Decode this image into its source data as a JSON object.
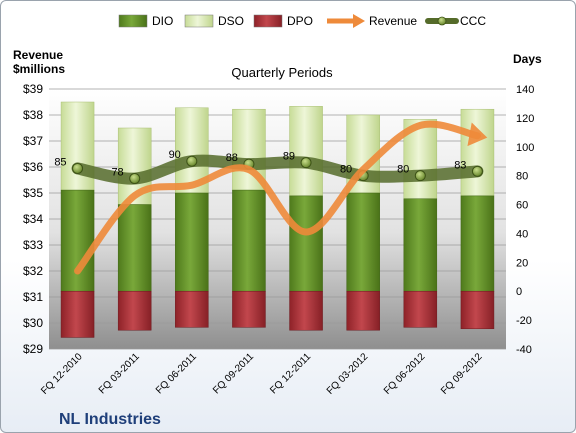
{
  "chart_data": {
    "type": "bar",
    "title": "Quarterly Periods",
    "left_axis_label": [
      "Revenue",
      "$millions"
    ],
    "right_axis_label": "Days",
    "company": "NL Industries",
    "categories": [
      "FQ 12-2010",
      "FQ 03-2011",
      "FQ 06-2011",
      "FQ 09-2011",
      "FQ 12-2011",
      "FQ 03-2012",
      "FQ 06-2012",
      "FQ 09-2012"
    ],
    "left_axis": {
      "min": 29,
      "max": 39,
      "step": 1,
      "ticks": [
        "$29",
        "$30",
        "$31",
        "$32",
        "$33",
        "$34",
        "$35",
        "$36",
        "$37",
        "$38",
        "$39"
      ]
    },
    "right_axis": {
      "min": -40,
      "max": 140,
      "step": 20,
      "ticks": [
        "-40",
        "-20",
        "0",
        "20",
        "40",
        "60",
        "80",
        "100",
        "120",
        "140"
      ]
    },
    "series": [
      {
        "name": "DIO",
        "kind": "bar-stack",
        "axis": "right",
        "color": "#6e9b2e",
        "values": [
          70,
          60,
          68,
          70,
          66,
          68,
          64,
          66
        ]
      },
      {
        "name": "DSO",
        "kind": "bar-stack",
        "axis": "right",
        "color": "#dbe9b6",
        "values": [
          61,
          53,
          59,
          56,
          62,
          54,
          55,
          60
        ]
      },
      {
        "name": "DPO",
        "kind": "bar-below",
        "axis": "right",
        "color": "#b2363c",
        "values": [
          32,
          27,
          25,
          25,
          27,
          27,
          25,
          26
        ]
      },
      {
        "name": "Revenue",
        "kind": "line",
        "axis": "left",
        "color": "#ee8a3a",
        "values": [
          32.0,
          34.9,
          35.3,
          35.9,
          33.5,
          35.9,
          37.6,
          37.2
        ]
      },
      {
        "name": "CCC",
        "kind": "line",
        "axis": "right",
        "color": "#556b2a",
        "values": [
          85,
          78,
          90,
          88,
          89,
          80,
          80,
          83
        ],
        "labels": [
          "85",
          "78",
          "90",
          "88",
          "89",
          "80",
          "80",
          "83"
        ]
      }
    ],
    "legend": {
      "position": "top",
      "items": [
        "DIO",
        "DSO",
        "DPO",
        "Revenue",
        "CCC"
      ]
    }
  }
}
